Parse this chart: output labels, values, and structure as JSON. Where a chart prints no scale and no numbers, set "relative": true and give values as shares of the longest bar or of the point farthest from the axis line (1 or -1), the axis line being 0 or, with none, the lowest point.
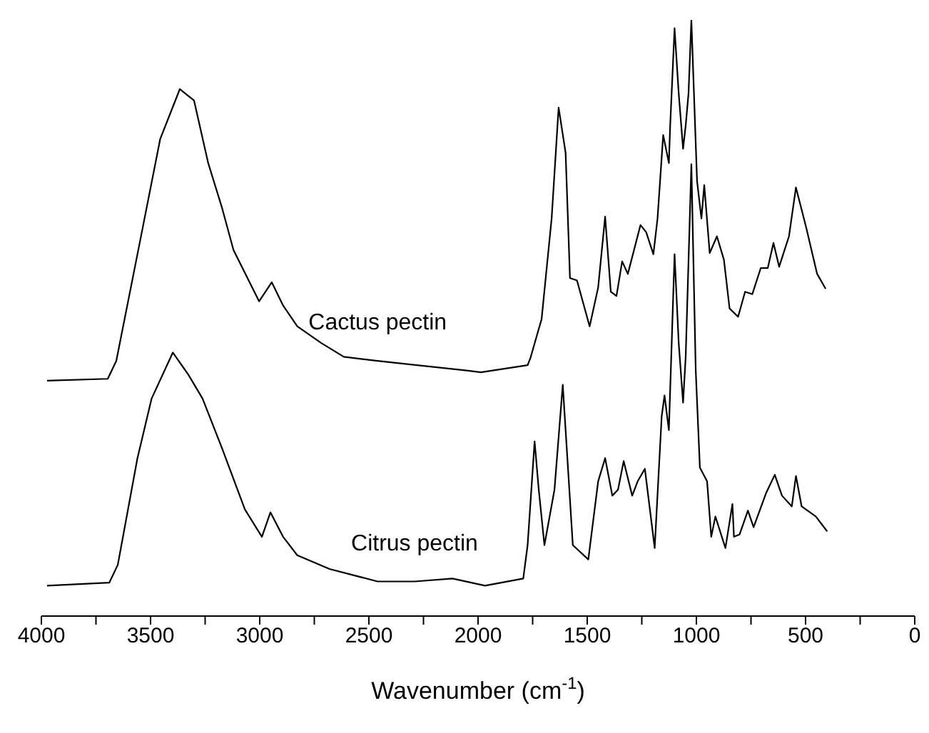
{
  "chart_data": {
    "type": "line",
    "relative": true,
    "xlabel": "Wavenumber (cm$^{-1}$)",
    "xlim": [
      4000,
      0
    ],
    "xticks": [
      4000,
      {
        "value": 3750,
        "label": null
      },
      3500,
      {
        "value": 3250,
        "label": null
      },
      3000,
      {
        "value": 2750,
        "label": null
      },
      2500,
      {
        "value": 2250,
        "label": null
      },
      2000,
      {
        "value": 1750,
        "label": null
      },
      1500,
      {
        "value": 1250,
        "label": null
      },
      1000,
      {
        "value": 750,
        "label": null
      },
      500,
      {
        "value": 250,
        "label": null
      },
      0
    ],
    "marker": "none",
    "line_style": "solid",
    "series": [
      {
        "name": "Cactus pectin",
        "color": "#000000",
        "x": [
          3974,
          3696,
          3657,
          3540,
          3456,
          3366,
          3301,
          3236,
          3172,
          3120,
          3003,
          2945,
          2893,
          2828,
          2718,
          2615,
          2460,
          2052,
          1987,
          1773,
          1760,
          1728,
          1709,
          1663,
          1631,
          1599,
          1579,
          1547,
          1489,
          1450,
          1418,
          1392,
          1366,
          1340,
          1314,
          1256,
          1230,
          1197,
          1178,
          1152,
          1126,
          1120,
          1100,
          1081,
          1061,
          1049,
          1036,
          1023,
          997,
          977,
          964,
          939,
          906,
          874,
          848,
          809,
          777,
          744,
          705,
          673,
          647,
          621,
          576,
          544,
          498,
          447,
          408
        ],
        "values": [
          0.395,
          0.398,
          0.428,
          0.644,
          0.8,
          0.884,
          0.865,
          0.76,
          0.684,
          0.614,
          0.528,
          0.56,
          0.521,
          0.486,
          0.458,
          0.435,
          0.428,
          0.412,
          0.409,
          0.421,
          0.433,
          0.474,
          0.498,
          0.667,
          0.853,
          0.777,
          0.567,
          0.563,
          0.486,
          0.551,
          0.67,
          0.544,
          0.537,
          0.595,
          0.574,
          0.656,
          0.644,
          0.607,
          0.667,
          0.807,
          0.76,
          0.823,
          0.986,
          0.877,
          0.784,
          0.823,
          0.877,
          1.0,
          0.73,
          0.667,
          0.723,
          0.609,
          0.637,
          0.598,
          0.516,
          0.502,
          0.544,
          0.54,
          0.584,
          0.584,
          0.626,
          0.586,
          0.637,
          0.719,
          0.653,
          0.574,
          0.549
        ]
      },
      {
        "name": "Citrus pectin",
        "color": "#000000",
        "x": [
          3974,
          3689,
          3650,
          3560,
          3495,
          3398,
          3327,
          3262,
          3172,
          3068,
          2990,
          2951,
          2893,
          2828,
          2680,
          2460,
          2291,
          2117,
          1968,
          1793,
          1773,
          1741,
          1722,
          1696,
          1650,
          1612,
          1599,
          1566,
          1495,
          1450,
          1418,
          1385,
          1359,
          1333,
          1294,
          1269,
          1236,
          1191,
          1159,
          1146,
          1126,
          1100,
          1081,
          1061,
          1049,
          1023,
          1003,
          984,
          951,
          932,
          913,
          867,
          835,
          828,
          802,
          764,
          738,
          680,
          641,
          608,
          563,
          544,
          518,
          453,
          401
        ],
        "values": [
          0.051,
          0.056,
          0.086,
          0.265,
          0.365,
          0.442,
          0.405,
          0.365,
          0.281,
          0.179,
          0.133,
          0.174,
          0.133,
          0.102,
          0.079,
          0.058,
          0.058,
          0.063,
          0.051,
          0.063,
          0.119,
          0.293,
          0.212,
          0.119,
          0.212,
          0.388,
          0.312,
          0.119,
          0.095,
          0.226,
          0.265,
          0.202,
          0.212,
          0.26,
          0.202,
          0.226,
          0.247,
          0.114,
          0.335,
          0.37,
          0.312,
          0.607,
          0.458,
          0.358,
          0.435,
          0.758,
          0.412,
          0.249,
          0.226,
          0.133,
          0.167,
          0.114,
          0.188,
          0.133,
          0.137,
          0.177,
          0.149,
          0.207,
          0.237,
          0.202,
          0.184,
          0.235,
          0.184,
          0.167,
          0.142
        ]
      }
    ]
  }
}
